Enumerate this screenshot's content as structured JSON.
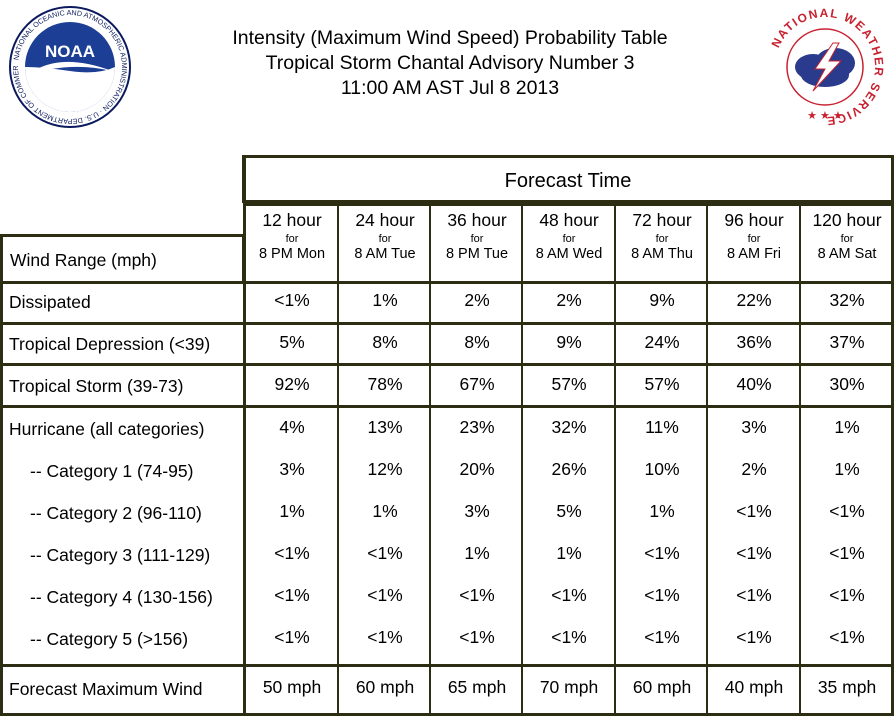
{
  "header": {
    "line1": "Intensity (Maximum Wind Speed) Probability Table",
    "line2": "Tropical Storm Chantal Advisory Number 3",
    "line3": "11:00 AM AST Jul 8 2013"
  },
  "logos": {
    "noaa": {
      "abbr": "NOAA",
      "ring_text": "NATIONAL OCEANIC AND ATMOSPHERIC ADMINISTRATION · U.S. DEPARTMENT OF COMMERCE"
    },
    "nws": {
      "ring_text": "NATIONAL WEATHER SERVICE"
    }
  },
  "table": {
    "forecast_time_label": "Forecast Time",
    "wind_range_label": "Wind Range (mph)",
    "columns": [
      {
        "hour": "12 hour",
        "for": "for",
        "time": "8 PM Mon"
      },
      {
        "hour": "24 hour",
        "for": "for",
        "time": "8 AM Tue"
      },
      {
        "hour": "36 hour",
        "for": "for",
        "time": "8 PM Tue"
      },
      {
        "hour": "48 hour",
        "for": "for",
        "time": "8 AM Wed"
      },
      {
        "hour": "72 hour",
        "for": "for",
        "time": "8 AM Thu"
      },
      {
        "hour": "96 hour",
        "for": "for",
        "time": "8 AM Fri"
      },
      {
        "hour": "120 hour",
        "for": "for",
        "time": "8 AM Sat"
      }
    ],
    "rows": [
      {
        "label": "Dissipated",
        "values": [
          "<1%",
          "1%",
          "2%",
          "2%",
          "9%",
          "22%",
          "32%"
        ]
      },
      {
        "label": "Tropical Depression (<39)",
        "values": [
          "5%",
          "8%",
          "8%",
          "9%",
          "24%",
          "36%",
          "37%"
        ]
      },
      {
        "label": "Tropical Storm (39-73)",
        "values": [
          "92%",
          "78%",
          "67%",
          "57%",
          "57%",
          "40%",
          "30%"
        ]
      },
      {
        "label": "Hurricane (all categories)",
        "values": [
          "4%",
          "13%",
          "23%",
          "32%",
          "11%",
          "3%",
          "1%"
        ]
      },
      {
        "label": "-- Category 1 (74-95)",
        "values": [
          "3%",
          "12%",
          "20%",
          "26%",
          "10%",
          "2%",
          "1%"
        ]
      },
      {
        "label": "-- Category 2 (96-110)",
        "values": [
          "1%",
          "1%",
          "3%",
          "5%",
          "1%",
          "<1%",
          "<1%"
        ]
      },
      {
        "label": "-- Category 3 (111-129)",
        "values": [
          "<1%",
          "<1%",
          "1%",
          "1%",
          "<1%",
          "<1%",
          "<1%"
        ]
      },
      {
        "label": "-- Category 4 (130-156)",
        "values": [
          "<1%",
          "<1%",
          "<1%",
          "<1%",
          "<1%",
          "<1%",
          "<1%"
        ]
      },
      {
        "label": "-- Category 5 (>156)",
        "values": [
          "<1%",
          "<1%",
          "<1%",
          "<1%",
          "<1%",
          "<1%",
          "<1%"
        ]
      }
    ],
    "max_wind": {
      "label": "Forecast Maximum Wind",
      "values": [
        "50 mph",
        "60 mph",
        "65 mph",
        "70 mph",
        "60 mph",
        "40 mph",
        "35 mph"
      ]
    }
  },
  "colors": {
    "grid": "#2d2d14",
    "noaa_blue": "#1c3f95",
    "noaa_navy": "#0b1a5e",
    "nws_red": "#c8202f",
    "nws_cloud": "#2a3a8c"
  }
}
